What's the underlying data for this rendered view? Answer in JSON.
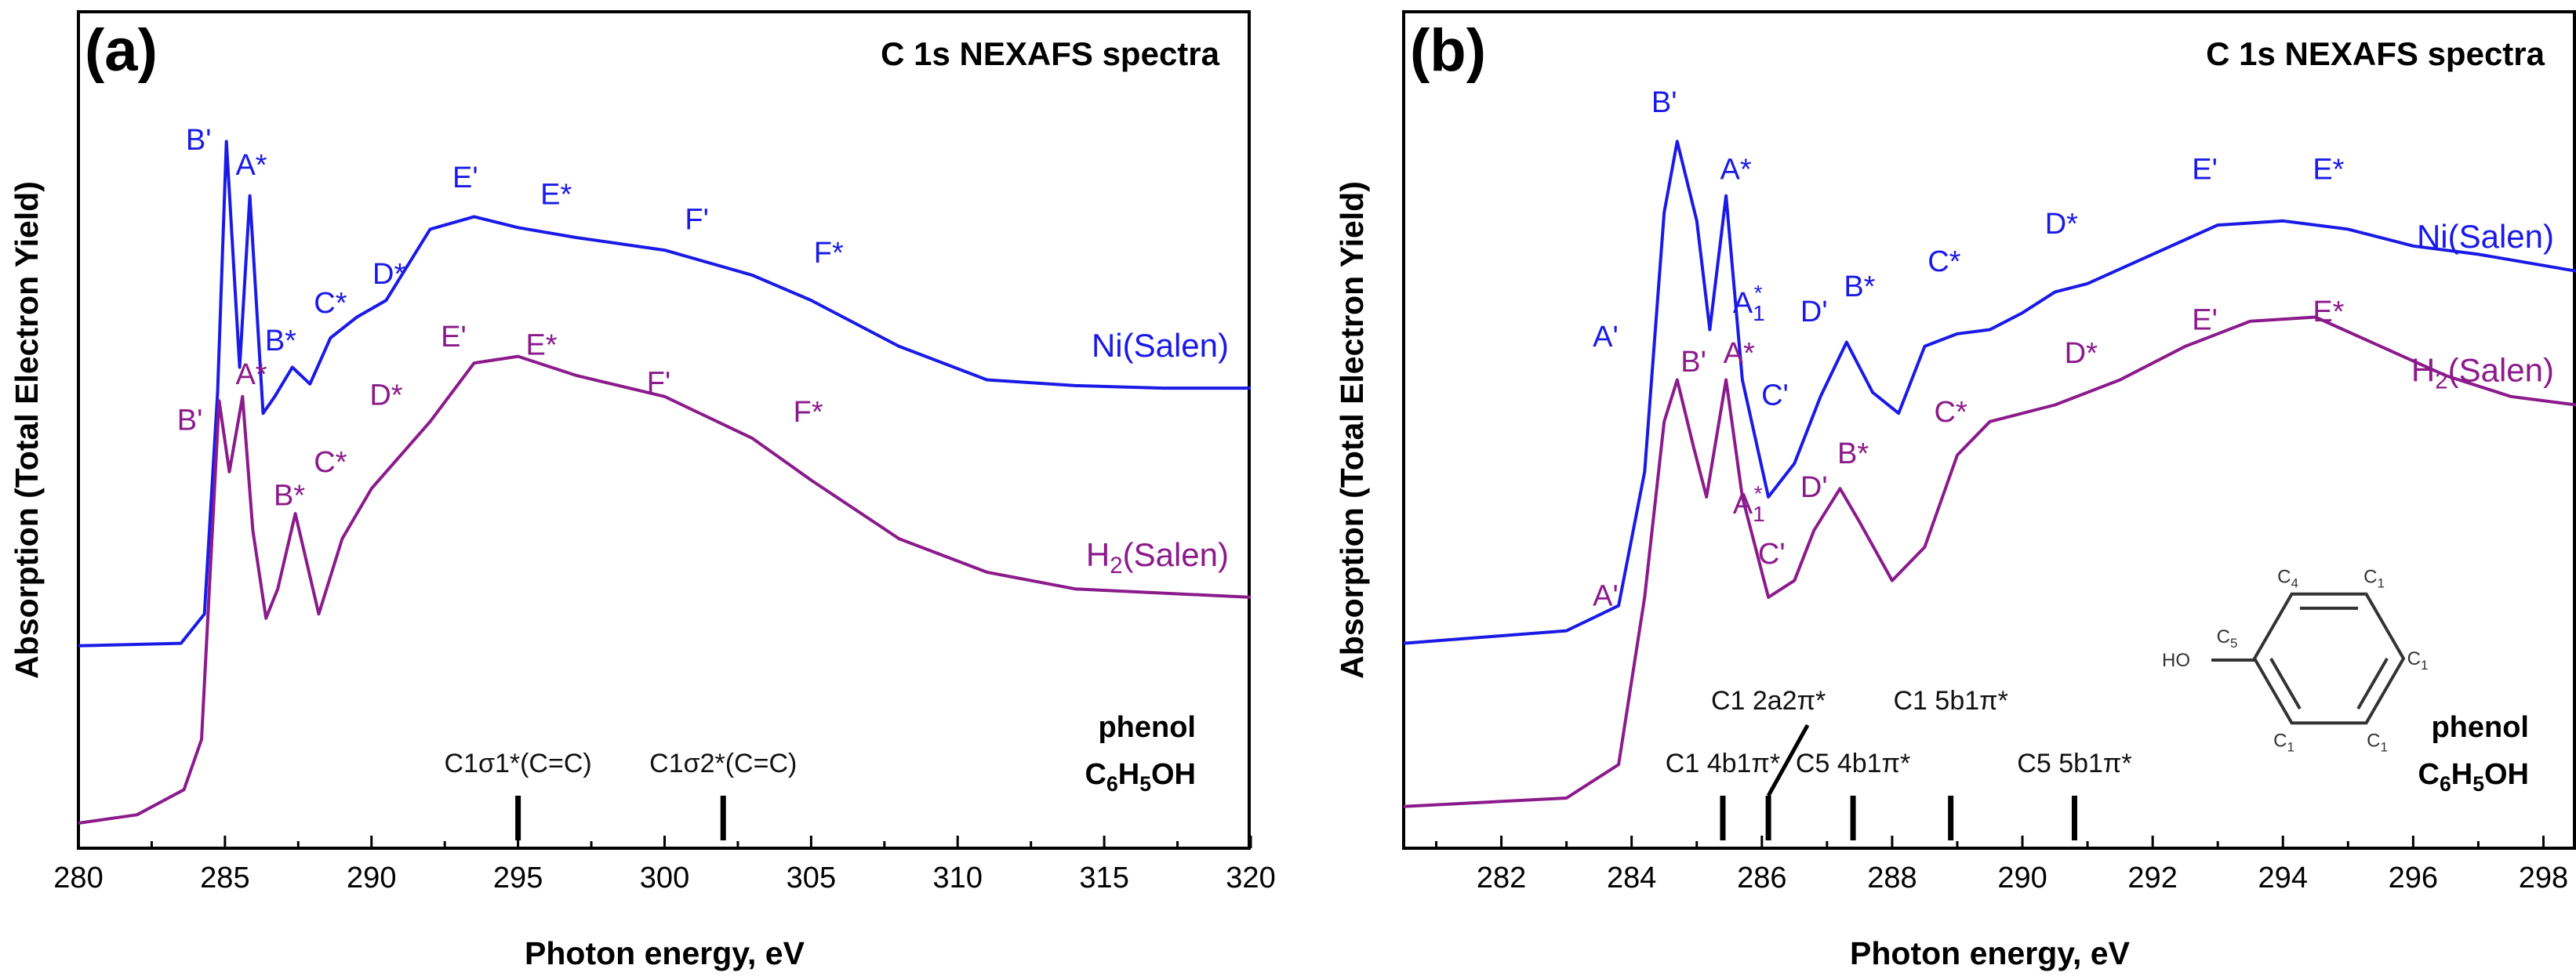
{
  "figure": {
    "y_axis_title": "Absorption (Total Electron Yield)",
    "x_axis_title": "Photon energy, eV"
  },
  "chart_data": [
    {
      "type": "line",
      "panel": "(a)",
      "title": "C 1s NEXAFS spectra",
      "xlabel": "Photon energy, eV",
      "ylabel": "Absorption (Total Electron Yield)",
      "xlim": [
        280,
        320
      ],
      "ylim": [
        0,
        1
      ],
      "x_ticks": [
        280,
        285,
        290,
        295,
        300,
        305,
        310,
        315,
        320
      ],
      "tick_labels": [
        "280",
        "285",
        "290",
        "295",
        "300",
        "305",
        "310",
        "315",
        "320"
      ],
      "series": [
        {
          "name": "Ni(Salen)",
          "label": "Ni(Salen)",
          "color": "#1a1ae6",
          "x": [
            280,
            283.5,
            284.3,
            284.75,
            285.05,
            285.5,
            285.85,
            286.3,
            286.7,
            287.3,
            287.9,
            288.6,
            289.5,
            290.5,
            292,
            293.5,
            295,
            297,
            300,
            303,
            305,
            308,
            311,
            314,
            317,
            320
          ],
          "y": [
            0.242,
            0.245,
            0.28,
            0.545,
            0.845,
            0.575,
            0.78,
            0.52,
            0.54,
            0.575,
            0.555,
            0.61,
            0.635,
            0.655,
            0.74,
            0.755,
            0.742,
            0.73,
            0.715,
            0.685,
            0.655,
            0.6,
            0.56,
            0.553,
            0.55,
            0.55
          ]
        },
        {
          "name": "H2(Salen)",
          "label": "H2(Salen)",
          "color": "#8b1a8b",
          "x": [
            280,
            282,
            283.6,
            284.2,
            284.8,
            285.15,
            285.6,
            285.95,
            286.4,
            286.8,
            287.4,
            288.2,
            289,
            290,
            292,
            293.5,
            295,
            297,
            300,
            303,
            305,
            308,
            311,
            314,
            317,
            320
          ],
          "y": [
            0.03,
            0.04,
            0.07,
            0.13,
            0.535,
            0.45,
            0.54,
            0.38,
            0.275,
            0.31,
            0.4,
            0.28,
            0.37,
            0.43,
            0.51,
            0.58,
            0.588,
            0.565,
            0.54,
            0.49,
            0.44,
            0.37,
            0.33,
            0.31,
            0.305,
            0.3
          ]
        }
      ],
      "peak_labels": [
        {
          "series": "Ni(Salen)",
          "text": "B'",
          "x": 284.1,
          "y": 0.835
        },
        {
          "series": "Ni(Salen)",
          "text": "A*",
          "x": 285.9,
          "y": 0.805
        },
        {
          "series": "Ni(Salen)",
          "text": "B*",
          "x": 286.9,
          "y": 0.595
        },
        {
          "series": "Ni(Salen)",
          "text": "C*",
          "x": 288.6,
          "y": 0.64
        },
        {
          "series": "Ni(Salen)",
          "text": "D*",
          "x": 290.6,
          "y": 0.675
        },
        {
          "series": "Ni(Salen)",
          "text": "E'",
          "x": 293.2,
          "y": 0.79
        },
        {
          "series": "Ni(Salen)",
          "text": "E*",
          "x": 296.3,
          "y": 0.77
        },
        {
          "series": "Ni(Salen)",
          "text": "F'",
          "x": 301.1,
          "y": 0.74
        },
        {
          "series": "Ni(Salen)",
          "text": "F*",
          "x": 305.6,
          "y": 0.7
        },
        {
          "series": "H2(Salen)",
          "text": "B'",
          "x": 283.8,
          "y": 0.5
        },
        {
          "series": "H2(Salen)",
          "text": "A*",
          "x": 285.9,
          "y": 0.555
        },
        {
          "series": "H2(Salen)",
          "text": "B*",
          "x": 287.2,
          "y": 0.41
        },
        {
          "series": "H2(Salen)",
          "text": "C*",
          "x": 288.6,
          "y": 0.45
        },
        {
          "series": "H2(Salen)",
          "text": "D*",
          "x": 290.5,
          "y": 0.53
        },
        {
          "series": "H2(Salen)",
          "text": "E'",
          "x": 292.8,
          "y": 0.6
        },
        {
          "series": "H2(Salen)",
          "text": "E*",
          "x": 295.8,
          "y": 0.59
        },
        {
          "series": "H2(Salen)",
          "text": "F'",
          "x": 299.8,
          "y": 0.545
        },
        {
          "series": "H2(Salen)",
          "text": "F*",
          "x": 304.9,
          "y": 0.51
        }
      ],
      "reference_lines": [
        {
          "label": "C1σ1*(C=C)",
          "x": 295
        },
        {
          "label": "C1σ2*(C=C)",
          "x": 302
        }
      ],
      "molecule_label": "phenol",
      "molecule_formula": "C6H5OH",
      "curve_labels": [
        {
          "series": "Ni(Salen)",
          "text": "Ni(Salen)",
          "position": "right, above curve"
        },
        {
          "series": "H2(Salen)",
          "text": "H2(Salen)",
          "position": "right, above curve"
        }
      ]
    },
    {
      "type": "line",
      "panel": "(b)",
      "title": "C 1s NEXAFS spectra",
      "xlabel": "Photon energy, eV",
      "ylabel": "Absorption (Total Electron Yield)",
      "xlim": [
        280.5,
        298.5
      ],
      "ylim": [
        0,
        1
      ],
      "x_ticks": [
        282,
        284,
        286,
        288,
        290,
        292,
        294,
        296,
        298
      ],
      "tick_labels": [
        "282",
        "284",
        "286",
        "288",
        "290",
        "292",
        "294",
        "296",
        "298"
      ],
      "series": [
        {
          "name": "Ni(Salen)",
          "label": "Ni(Salen)",
          "color": "#1a1ae6",
          "x": [
            280.5,
            283,
            283.8,
            284.2,
            284.5,
            284.7,
            285.0,
            285.2,
            285.45,
            285.7,
            286.1,
            286.5,
            286.9,
            287.3,
            287.7,
            288.1,
            288.5,
            289.0,
            289.5,
            290.0,
            290.5,
            291.0,
            292.0,
            293.0,
            294.0,
            295.0,
            296.0,
            297.0,
            298.5
          ],
          "y": [
            0.245,
            0.26,
            0.29,
            0.45,
            0.76,
            0.845,
            0.75,
            0.62,
            0.78,
            0.56,
            0.42,
            0.46,
            0.54,
            0.605,
            0.545,
            0.52,
            0.6,
            0.615,
            0.62,
            0.64,
            0.665,
            0.675,
            0.71,
            0.745,
            0.75,
            0.74,
            0.72,
            0.71,
            0.69
          ]
        },
        {
          "name": "H2(Salen)",
          "label": "H2(Salen)",
          "color": "#8b1a8b",
          "x": [
            280.5,
            283,
            283.8,
            284.2,
            284.5,
            284.7,
            284.95,
            285.15,
            285.45,
            285.7,
            286.1,
            286.5,
            286.8,
            287.2,
            287.5,
            288.0,
            288.5,
            289.0,
            289.5,
            290.5,
            291.5,
            292.5,
            293.5,
            294.5,
            295.5,
            296.5,
            297.5,
            298.5
          ],
          "y": [
            0.05,
            0.06,
            0.1,
            0.3,
            0.51,
            0.56,
            0.48,
            0.42,
            0.56,
            0.42,
            0.3,
            0.32,
            0.38,
            0.43,
            0.39,
            0.32,
            0.36,
            0.47,
            0.51,
            0.53,
            0.56,
            0.6,
            0.63,
            0.635,
            0.6,
            0.565,
            0.54,
            0.53
          ]
        }
      ],
      "peak_labels": [
        {
          "series": "Ni(Salen)",
          "text": "B'",
          "x": 284.5,
          "y": 0.88
        },
        {
          "series": "Ni(Salen)",
          "text": "A*",
          "x": 285.6,
          "y": 0.8
        },
        {
          "series": "Ni(Salen)",
          "text": "A'",
          "x": 283.6,
          "y": 0.6
        },
        {
          "series": "Ni(Salen)",
          "text": "A1*",
          "x": 285.8,
          "y": 0.64
        },
        {
          "series": "Ni(Salen)",
          "text": "C'",
          "x": 286.2,
          "y": 0.53
        },
        {
          "series": "Ni(Salen)",
          "text": "D'",
          "x": 286.8,
          "y": 0.63
        },
        {
          "series": "Ni(Salen)",
          "text": "B*",
          "x": 287.5,
          "y": 0.66
        },
        {
          "series": "Ni(Salen)",
          "text": "C*",
          "x": 288.8,
          "y": 0.69
        },
        {
          "series": "Ni(Salen)",
          "text": "D*",
          "x": 290.6,
          "y": 0.735
        },
        {
          "series": "Ni(Salen)",
          "text": "E'",
          "x": 292.8,
          "y": 0.8
        },
        {
          "series": "Ni(Salen)",
          "text": "E*",
          "x": 294.7,
          "y": 0.8
        },
        {
          "series": "H2(Salen)",
          "text": "B'",
          "x": 284.95,
          "y": 0.57
        },
        {
          "series": "H2(Salen)",
          "text": "A*",
          "x": 285.65,
          "y": 0.58
        },
        {
          "series": "H2(Salen)",
          "text": "A'",
          "x": 283.6,
          "y": 0.29
        },
        {
          "series": "H2(Salen)",
          "text": "A1*",
          "x": 285.8,
          "y": 0.4
        },
        {
          "series": "H2(Salen)",
          "text": "C'",
          "x": 286.15,
          "y": 0.34
        },
        {
          "series": "H2(Salen)",
          "text": "D'",
          "x": 286.8,
          "y": 0.42
        },
        {
          "series": "H2(Salen)",
          "text": "B*",
          "x": 287.4,
          "y": 0.46
        },
        {
          "series": "H2(Salen)",
          "text": "C*",
          "x": 288.9,
          "y": 0.51
        },
        {
          "series": "H2(Salen)",
          "text": "D*",
          "x": 290.9,
          "y": 0.58
        },
        {
          "series": "H2(Salen)",
          "text": "E'",
          "x": 292.8,
          "y": 0.62
        },
        {
          "series": "H2(Salen)",
          "text": "E*",
          "x": 294.7,
          "y": 0.63
        }
      ],
      "reference_lines": [
        {
          "label": "C1 4b1π*",
          "x": 285.4
        },
        {
          "label": "C1 2a2π*",
          "x": 286.1
        },
        {
          "label": "C5 4b1π*",
          "x": 287.4
        },
        {
          "label": "C1 5b1π*",
          "x": 288.9
        },
        {
          "label": "C5 5b1π*",
          "x": 290.8
        }
      ],
      "molecule_label": "phenol",
      "molecule_formula": "C6H5OH",
      "molecule_atoms": [
        "C4",
        "C1",
        "C5",
        "HO",
        "C1",
        "C1",
        "C1"
      ],
      "curve_labels": [
        {
          "series": "Ni(Salen)",
          "text": "Ni(Salen)",
          "position": "top-right"
        },
        {
          "series": "H2(Salen)",
          "text": "H2(Salen)",
          "position": "right"
        }
      ]
    }
  ]
}
